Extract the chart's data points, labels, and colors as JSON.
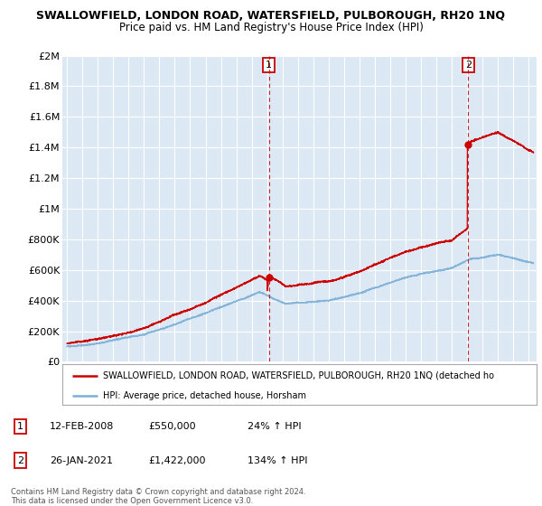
{
  "title": "SWALLOWFIELD, LONDON ROAD, WATERSFIELD, PULBOROUGH, RH20 1NQ",
  "subtitle": "Price paid vs. HM Land Registry's House Price Index (HPI)",
  "legend_line1": "SWALLOWFIELD, LONDON ROAD, WATERSFIELD, PULBOROUGH, RH20 1NQ (detached ho",
  "legend_line2": "HPI: Average price, detached house, Horsham",
  "footer1": "Contains HM Land Registry data © Crown copyright and database right 2024.",
  "footer2": "This data is licensed under the Open Government Licence v3.0.",
  "sale1_label": "1",
  "sale1_date": "12-FEB-2008",
  "sale1_price": "£550,000",
  "sale1_hpi": "24% ↑ HPI",
  "sale1_x": 2008.12,
  "sale1_y": 550000,
  "sale2_label": "2",
  "sale2_date": "26-JAN-2021",
  "sale2_price": "£1,422,000",
  "sale2_hpi": "134% ↑ HPI",
  "sale2_x": 2021.07,
  "sale2_y": 1422000,
  "hpi_color": "#7bafd4",
  "price_color": "#cc0000",
  "dashed_color": "#cc0000",
  "background_color": "#ffffff",
  "plot_bg_color": "#dce9f5",
  "grid_color": "#ffffff",
  "ylim": [
    0,
    2000000
  ],
  "xlim_start": 1994.7,
  "xlim_end": 2025.5,
  "yticks": [
    0,
    200000,
    400000,
    600000,
    800000,
    1000000,
    1200000,
    1400000,
    1600000,
    1800000,
    2000000
  ],
  "ytick_labels": [
    "£0",
    "£200K",
    "£400K",
    "£600K",
    "£800K",
    "£1M",
    "£1.2M",
    "£1.4M",
    "£1.6M",
    "£1.8M",
    "£2M"
  ],
  "xticks": [
    1995,
    1996,
    1997,
    1998,
    1999,
    2000,
    2001,
    2002,
    2003,
    2004,
    2005,
    2006,
    2007,
    2008,
    2009,
    2010,
    2011,
    2012,
    2013,
    2014,
    2015,
    2016,
    2017,
    2018,
    2019,
    2020,
    2021,
    2022,
    2023,
    2024,
    2025
  ]
}
